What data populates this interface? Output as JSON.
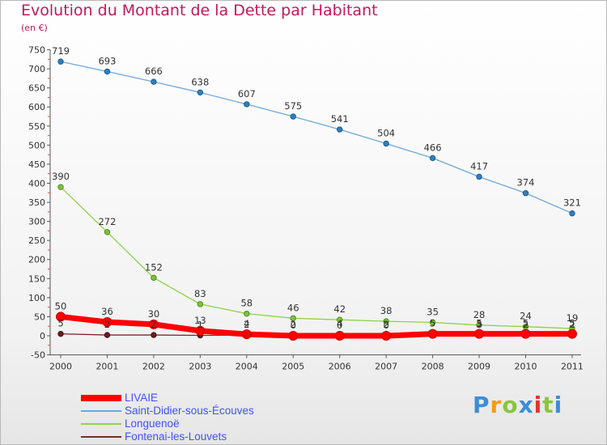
{
  "header": {
    "title": "Evolution du Montant de la Dette par Habitant",
    "subtitle": "(en €)"
  },
  "brand": {
    "text": "Proxiti",
    "colors": [
      "#3b8ed6",
      "#f59c1a",
      "#8bc43f",
      "#3b8ed6",
      "#e3342f",
      "#8bc43f",
      "#3b8ed6"
    ]
  },
  "chart_data": {
    "type": "line",
    "title": "Evolution du Montant de la Dette par Habitant",
    "subtitle": "(en €)",
    "xlabel": "",
    "ylabel": "",
    "ylim": [
      -50,
      750
    ],
    "yticks": [
      -50,
      0,
      50,
      100,
      150,
      200,
      250,
      300,
      350,
      400,
      450,
      500,
      550,
      600,
      650,
      700,
      750
    ],
    "categories": [
      "2000",
      "2001",
      "2002",
      "2003",
      "2004",
      "2005",
      "2006",
      "2007",
      "2008",
      "2009",
      "2010",
      "2011"
    ],
    "grid": "off",
    "legend_position": "bottom-left",
    "series": [
      {
        "name": "LIVAIE",
        "color": "#ff0000",
        "values": [
          50,
          36,
          30,
          13,
          4,
          0,
          0,
          0,
          5,
          5,
          5,
          5
        ],
        "labels": [
          "50",
          "36",
          "30",
          "13",
          "4",
          "0",
          "0",
          "0",
          "5",
          "5",
          "5",
          "5"
        ]
      },
      {
        "name": "Saint-Didier-sous-Écouves",
        "color": "#6fa8dc",
        "values": [
          719,
          693,
          666,
          638,
          607,
          575,
          541,
          504,
          466,
          417,
          374,
          321
        ],
        "labels": [
          "719",
          "693",
          "666",
          "638",
          "607",
          "575",
          "541",
          "504",
          "466",
          "417",
          "374",
          "321"
        ]
      },
      {
        "name": "Longuenoë",
        "color": "#8bd24a",
        "values": [
          390,
          272,
          152,
          83,
          58,
          46,
          42,
          38,
          35,
          28,
          24,
          19
        ],
        "labels": [
          "390",
          "272",
          "152",
          "83",
          "58",
          "46",
          "42",
          "38",
          "35",
          "28",
          "24",
          "19"
        ]
      },
      {
        "name": "Fontenai-les-Louvets",
        "color": "#7a2a2a",
        "values": [
          5,
          2,
          2,
          1,
          2,
          2,
          4,
          2,
          5,
          3,
          2,
          2
        ],
        "labels": [
          "5",
          "2",
          "2",
          "1",
          "2",
          "2",
          "4",
          "2",
          "5",
          "3",
          "2",
          "2"
        ]
      }
    ]
  }
}
